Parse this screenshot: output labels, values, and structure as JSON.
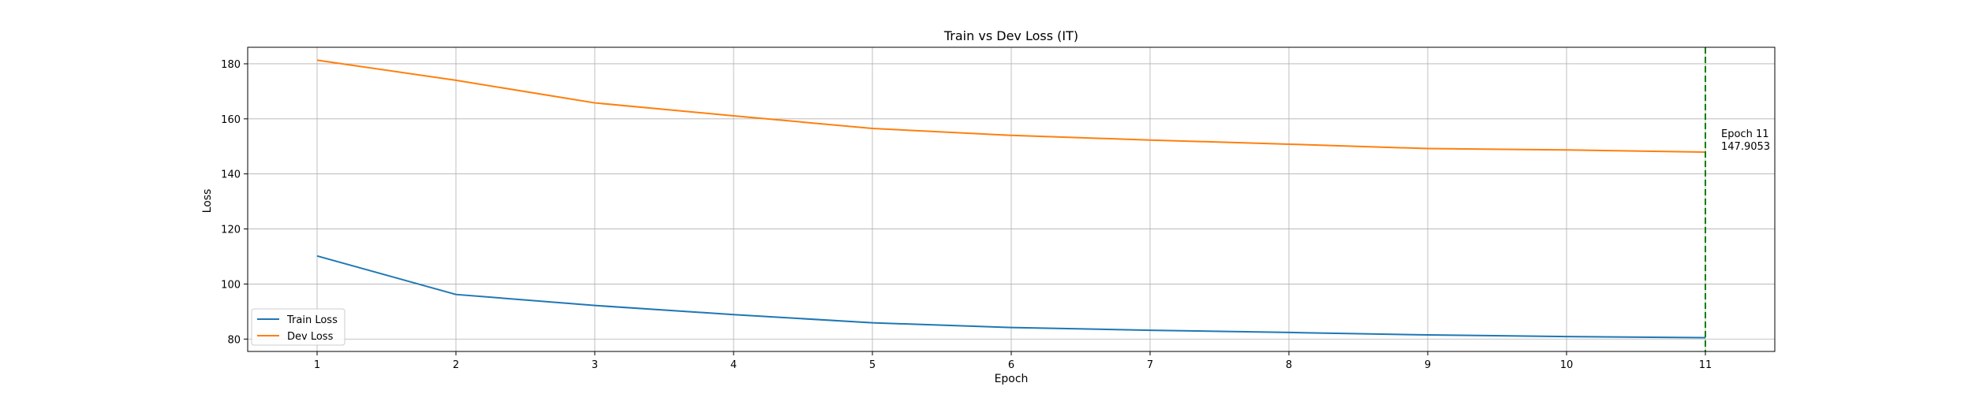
{
  "chart_data": {
    "type": "line",
    "title": "Train vs Dev Loss (IT)",
    "xlabel": "Epoch",
    "ylabel": "Loss",
    "x": [
      1,
      2,
      3,
      4,
      5,
      6,
      7,
      8,
      9,
      10,
      11
    ],
    "xlim": [
      0.5,
      11.5
    ],
    "ylim": [
      75.5,
      186
    ],
    "yticks": [
      80,
      100,
      120,
      140,
      160,
      180
    ],
    "grid": true,
    "legend_placement": "lower-left",
    "series": [
      {
        "name": "Train Loss",
        "color": "#1f77b4",
        "values": [
          110.2,
          96.2,
          92.2,
          88.9,
          85.9,
          84.2,
          83.2,
          82.4,
          81.5,
          80.9,
          80.5
        ]
      },
      {
        "name": "Dev Loss",
        "color": "#ff7f0e",
        "values": [
          181.3,
          174.0,
          165.8,
          161.1,
          156.5,
          154.0,
          152.3,
          150.8,
          149.2,
          148.7,
          147.9053
        ]
      }
    ],
    "annotation": {
      "x": 11,
      "line_color": "#008000",
      "line_style": "dashed",
      "line1": "Epoch 11",
      "line2": "147.9053"
    }
  }
}
